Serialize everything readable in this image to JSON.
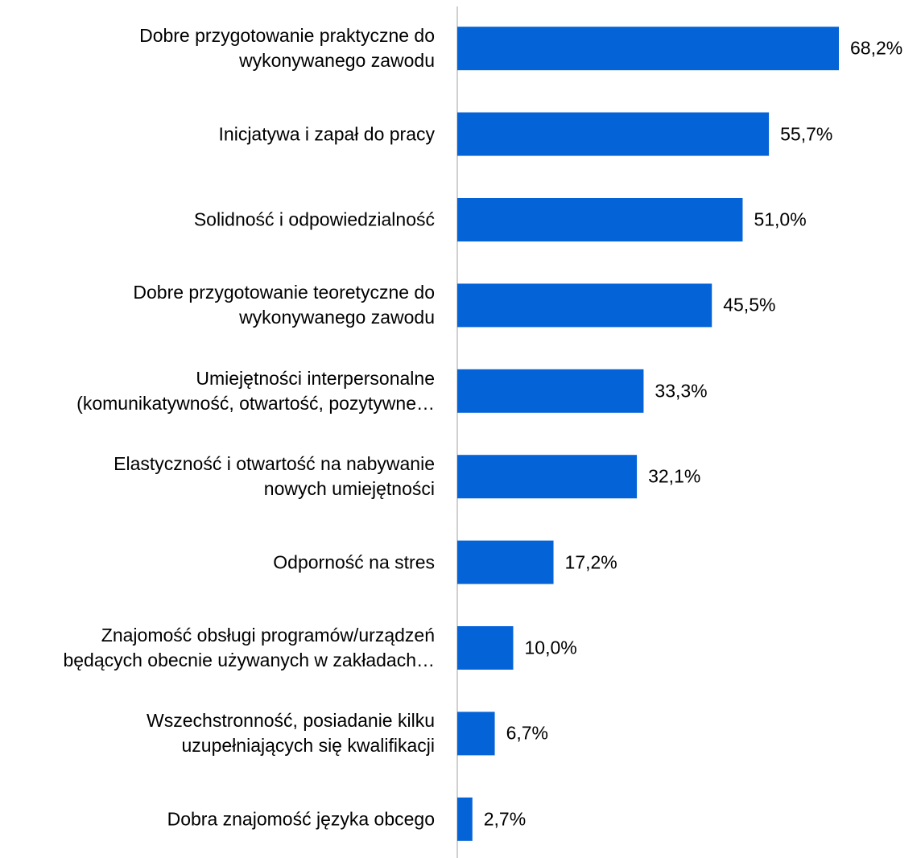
{
  "chart_data": {
    "type": "bar",
    "orientation": "horizontal",
    "categories": [
      "Dobre przygotowanie praktyczne do\nwykonywanego zawodu",
      "Inicjatywa i zapał do pracy",
      "Solidność i odpowiedzialność",
      "Dobre przygotowanie teoretyczne do\nwykonywanego zawodu",
      "Umiejętności interpersonalne\n(komunikatywność, otwartość, pozytywne…",
      "Elastyczność i otwartość na nabywanie\nnowych umiejętności",
      "Odporność na stres",
      "Znajomość obsługi programów/urządzeń\nbędących obecnie używanych w zakładach…",
      "Wszechstronność, posiadanie kilku\nuzupełniających się kwalifikacji",
      "Dobra znajomość języka obcego"
    ],
    "values": [
      68.2,
      55.7,
      51.0,
      45.5,
      33.3,
      32.1,
      17.2,
      10.0,
      6.7,
      2.7
    ],
    "value_labels": [
      "68,2%",
      "55,7%",
      "51,0%",
      "45,5%",
      "33,3%",
      "32,1%",
      "17,2%",
      "10,0%",
      "6,7%",
      "2,7%"
    ],
    "color": "#0563d8",
    "xlim": [
      0,
      80
    ]
  }
}
